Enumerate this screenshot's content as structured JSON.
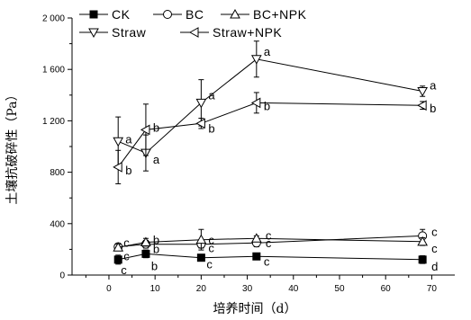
{
  "chart_data": {
    "type": "line",
    "xlabel": "培养时间（d）",
    "ylabel": "土壤抗破碎性（Pa）",
    "xlim": [
      -8,
      75
    ],
    "ylim": [
      0,
      2000
    ],
    "xticks": [
      "0",
      "10",
      "20",
      "30",
      "40",
      "50",
      "60",
      "70"
    ],
    "yticks": [
      "0",
      "400",
      "800",
      "1 200",
      "1 600",
      "2 000"
    ],
    "legend": "top-left",
    "grid": false,
    "series": [
      {
        "name": "CK",
        "marker": "square-filled",
        "x": [
          2,
          8,
          20,
          32,
          68
        ],
        "y": [
          120,
          165,
          135,
          145,
          120
        ],
        "err": [
          35,
          30,
          25,
          25,
          30
        ],
        "letters": [
          "c",
          "b",
          "c",
          "c",
          "d"
        ]
      },
      {
        "name": "BC",
        "marker": "circle-open",
        "x": [
          2,
          8,
          20,
          32,
          68
        ],
        "y": [
          220,
          240,
          240,
          250,
          305
        ],
        "err": [
          25,
          30,
          30,
          30,
          50
        ],
        "letters": [
          "c",
          "b",
          "c",
          "c",
          "c"
        ]
      },
      {
        "name": "BC+NPK",
        "marker": "triangle-up-open",
        "x": [
          2,
          8,
          20,
          32,
          68
        ],
        "y": [
          215,
          255,
          275,
          285,
          260
        ],
        "err": [
          25,
          30,
          80,
          20,
          30
        ],
        "letters": [
          "c",
          "b",
          "c",
          "c",
          "c"
        ]
      },
      {
        "name": "Straw",
        "marker": "triangle-down-open",
        "x": [
          2,
          8,
          20,
          32,
          68
        ],
        "y": [
          1040,
          950,
          1340,
          1680,
          1430
        ],
        "err": [
          190,
          140,
          180,
          140,
          40
        ],
        "letters": [
          "a",
          "a",
          "a",
          "a",
          "a"
        ]
      },
      {
        "name": "Straw+NPK",
        "marker": "triangle-left-open",
        "x": [
          2,
          8,
          20,
          32,
          68
        ],
        "y": [
          840,
          1130,
          1180,
          1340,
          1320
        ],
        "err": [
          130,
          200,
          40,
          80,
          30
        ],
        "letters": [
          "b",
          "b",
          "b",
          "b",
          "b"
        ]
      }
    ]
  }
}
